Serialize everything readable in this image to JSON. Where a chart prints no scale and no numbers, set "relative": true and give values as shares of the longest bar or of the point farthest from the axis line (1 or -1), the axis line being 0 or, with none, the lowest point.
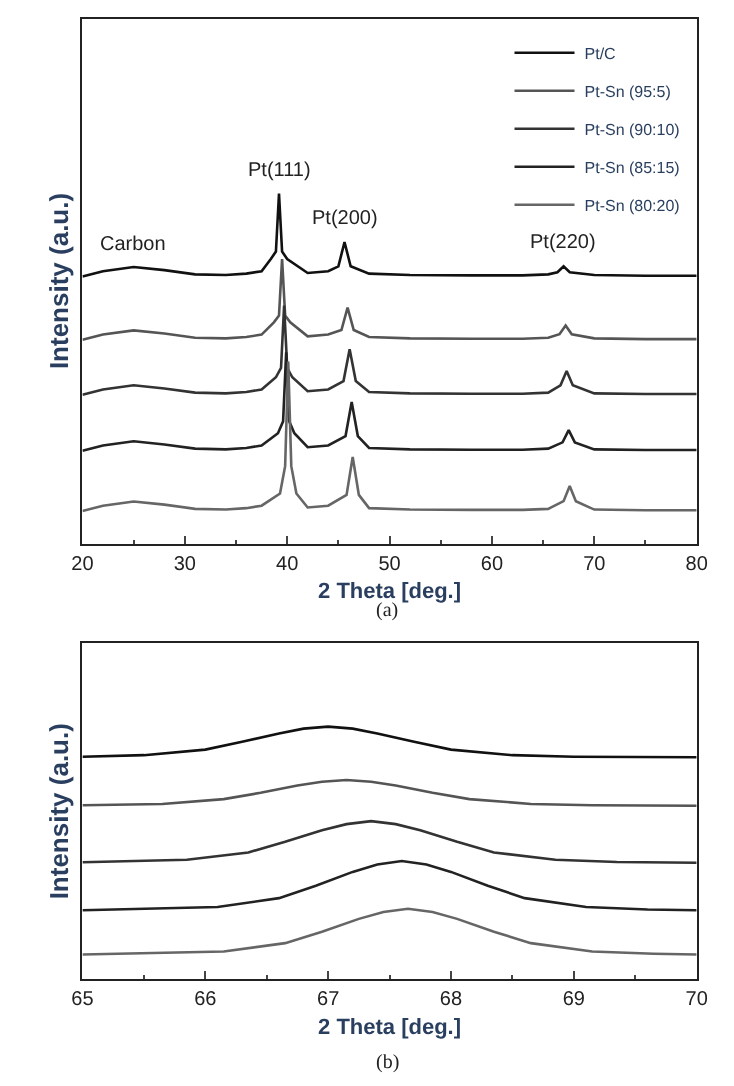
{
  "chart_data": [
    {
      "type": "line",
      "relative": true,
      "xlabel": "2 Theta [deg.]",
      "ylabel": "Intensity (a.u.)",
      "xlim": [
        20,
        80
      ],
      "xticks": [
        20,
        30,
        40,
        50,
        60,
        70,
        80
      ],
      "legend": "top right",
      "annotations": [
        {
          "text": "Carbon",
          "x": 25,
          "y": 0.79
        },
        {
          "text": "Pt(111)",
          "x": 39.2,
          "y": 1.0
        },
        {
          "text": "Pt(200)",
          "x": 45.6,
          "y": 0.861
        },
        {
          "text": "Pt(220)",
          "x": 67.0,
          "y": 0.792
        },
        "(a)"
      ],
      "series": [
        {
          "name": "Pt/C",
          "color": "#111111",
          "x": [
            20,
            22,
            25,
            28,
            31,
            34,
            36,
            37.5,
            38.4,
            38.9,
            39.2,
            39.5,
            40.0,
            42,
            44,
            45.0,
            45.6,
            46.2,
            48,
            52,
            58,
            63,
            65.5,
            66.4,
            67.0,
            67.6,
            70,
            75,
            80
          ],
          "values": [
            0.763,
            0.778,
            0.79,
            0.781,
            0.769,
            0.767,
            0.771,
            0.778,
            0.813,
            0.834,
            1.0,
            0.834,
            0.813,
            0.773,
            0.778,
            0.792,
            0.861,
            0.792,
            0.771,
            0.767,
            0.766,
            0.766,
            0.769,
            0.775,
            0.792,
            0.775,
            0.767,
            0.765,
            0.765
          ]
        },
        {
          "name": "Pt-Sn (95:5)",
          "color": "#555555",
          "x": [
            20,
            22,
            25,
            28,
            31,
            34,
            36,
            37.5,
            38.7,
            39.2,
            39.5,
            39.8,
            40.3,
            42,
            44,
            45.3,
            45.9,
            46.5,
            48,
            52,
            58,
            63,
            65.5,
            66.6,
            67.2,
            67.8,
            70,
            75,
            80
          ],
          "values": [
            0.582,
            0.597,
            0.609,
            0.6,
            0.588,
            0.586,
            0.59,
            0.597,
            0.632,
            0.651,
            0.813,
            0.651,
            0.632,
            0.592,
            0.597,
            0.61,
            0.674,
            0.61,
            0.59,
            0.586,
            0.585,
            0.585,
            0.588,
            0.598,
            0.623,
            0.598,
            0.586,
            0.584,
            0.584
          ]
        },
        {
          "name": "Pt-Sn (90:10)",
          "color": "#333333",
          "x": [
            20,
            22,
            25,
            28,
            31,
            34,
            36,
            37.5,
            38.9,
            39.4,
            39.7,
            40.0,
            40.5,
            42,
            44,
            45.5,
            46.1,
            46.7,
            48,
            52,
            58,
            63,
            65.5,
            66.7,
            67.3,
            67.9,
            70,
            75,
            80
          ],
          "values": [
            0.425,
            0.44,
            0.452,
            0.443,
            0.431,
            0.429,
            0.433,
            0.44,
            0.475,
            0.502,
            0.68,
            0.502,
            0.475,
            0.435,
            0.44,
            0.464,
            0.555,
            0.464,
            0.433,
            0.429,
            0.428,
            0.428,
            0.431,
            0.452,
            0.493,
            0.452,
            0.429,
            0.427,
            0.427
          ]
        },
        {
          "name": "Pt-Sn (85:15)",
          "color": "#222222",
          "x": [
            20,
            22,
            25,
            28,
            31,
            34,
            36,
            37.5,
            39.1,
            39.6,
            39.9,
            40.2,
            40.7,
            42,
            44,
            45.7,
            46.3,
            46.9,
            48,
            52,
            58,
            63,
            65.5,
            66.9,
            67.5,
            68.1,
            70,
            75,
            80
          ],
          "values": [
            0.265,
            0.28,
            0.292,
            0.283,
            0.271,
            0.269,
            0.273,
            0.28,
            0.315,
            0.349,
            0.546,
            0.349,
            0.315,
            0.275,
            0.28,
            0.307,
            0.404,
            0.307,
            0.273,
            0.269,
            0.268,
            0.268,
            0.271,
            0.289,
            0.324,
            0.289,
            0.269,
            0.267,
            0.267
          ]
        },
        {
          "name": "Pt-Sn (80:20)",
          "color": "#666666",
          "x": [
            20,
            22,
            25,
            28,
            31,
            34,
            36,
            37.5,
            39.3,
            39.8,
            40.1,
            40.4,
            40.9,
            42,
            44,
            45.8,
            46.4,
            47.0,
            48,
            52,
            58,
            63,
            65.5,
            67.0,
            67.6,
            68.2,
            70,
            75,
            80
          ],
          "values": [
            0.093,
            0.108,
            0.12,
            0.111,
            0.099,
            0.097,
            0.101,
            0.108,
            0.143,
            0.221,
            0.52,
            0.221,
            0.143,
            0.103,
            0.108,
            0.139,
            0.247,
            0.139,
            0.101,
            0.097,
            0.096,
            0.096,
            0.099,
            0.121,
            0.164,
            0.121,
            0.097,
            0.095,
            0.095
          ]
        }
      ]
    },
    {
      "type": "line",
      "relative": true,
      "xlabel": "2 Theta [deg.]",
      "ylabel": "Intensity (a.u.)",
      "xlim": [
        65,
        70
      ],
      "xticks": [
        65,
        66,
        67,
        68,
        69,
        70
      ],
      "annotations": [
        "(b)"
      ],
      "series": [
        {
          "color": "#111111",
          "x": [
            65,
            65.5,
            66,
            66.3,
            66.6,
            66.8,
            67,
            67.2,
            67.4,
            67.7,
            68,
            68.5,
            69,
            70
          ],
          "values": [
            0.881,
            0.887,
            0.909,
            0.94,
            0.973,
            0.992,
            1.0,
            0.992,
            0.973,
            0.94,
            0.909,
            0.887,
            0.881,
            0.879
          ]
        },
        {
          "color": "#555555",
          "x": [
            65,
            65.65,
            66.15,
            66.45,
            66.75,
            66.95,
            67.15,
            67.35,
            67.55,
            67.85,
            68.15,
            68.65,
            69.15,
            70
          ],
          "values": [
            0.689,
            0.694,
            0.713,
            0.738,
            0.767,
            0.782,
            0.789,
            0.782,
            0.767,
            0.738,
            0.713,
            0.694,
            0.689,
            0.687
          ]
        },
        {
          "color": "#333333",
          "x": [
            65,
            65.85,
            66.35,
            66.65,
            66.95,
            67.15,
            67.35,
            67.55,
            67.75,
            68.05,
            68.35,
            68.85,
            69.35,
            70
          ],
          "values": [
            0.463,
            0.473,
            0.502,
            0.544,
            0.59,
            0.614,
            0.626,
            0.614,
            0.59,
            0.544,
            0.502,
            0.473,
            0.464,
            0.461
          ]
        },
        {
          "color": "#222222",
          "x": [
            65,
            66.1,
            66.6,
            66.9,
            67.2,
            67.4,
            67.6,
            67.8,
            68,
            68.3,
            68.6,
            69.1,
            69.6,
            70
          ],
          "values": [
            0.273,
            0.286,
            0.321,
            0.37,
            0.425,
            0.454,
            0.468,
            0.454,
            0.425,
            0.37,
            0.321,
            0.286,
            0.276,
            0.273
          ]
        },
        {
          "color": "#666666",
          "x": [
            65,
            66.15,
            66.65,
            66.95,
            67.25,
            67.45,
            67.65,
            67.85,
            68.05,
            68.35,
            68.65,
            69.15,
            69.65,
            70
          ],
          "values": [
            0.098,
            0.11,
            0.143,
            0.188,
            0.239,
            0.266,
            0.279,
            0.266,
            0.239,
            0.188,
            0.143,
            0.11,
            0.101,
            0.098
          ]
        }
      ]
    }
  ]
}
